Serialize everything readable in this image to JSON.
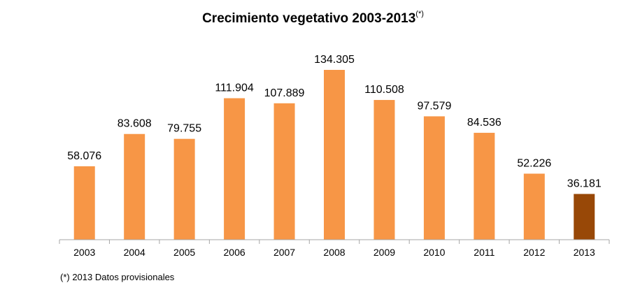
{
  "chart_data": {
    "type": "bar",
    "title": "Crecimiento vegetativo 2003-2013",
    "title_superscript": "(*)",
    "categories": [
      "2003",
      "2004",
      "2005",
      "2006",
      "2007",
      "2008",
      "2009",
      "2010",
      "2011",
      "2012",
      "2013"
    ],
    "values": [
      58076,
      83608,
      79755,
      111904,
      107889,
      134305,
      110508,
      97579,
      84536,
      52226,
      36181
    ],
    "value_labels": [
      "58.076",
      "83.608",
      "79.755",
      "111.904",
      "107.889",
      "134.305",
      "110.508",
      "97.579",
      "84.536",
      "52.226",
      "36.181"
    ],
    "xlabel": "",
    "ylabel": "",
    "ylim": [
      0,
      134305
    ],
    "grid": false,
    "legend": "none",
    "colors": {
      "bar": "#F79646",
      "bar_provisional": "#984807",
      "axis": "#a6a6a6"
    },
    "provisional_index": 10,
    "footnote": "(*) 2013 Datos provisionales"
  }
}
